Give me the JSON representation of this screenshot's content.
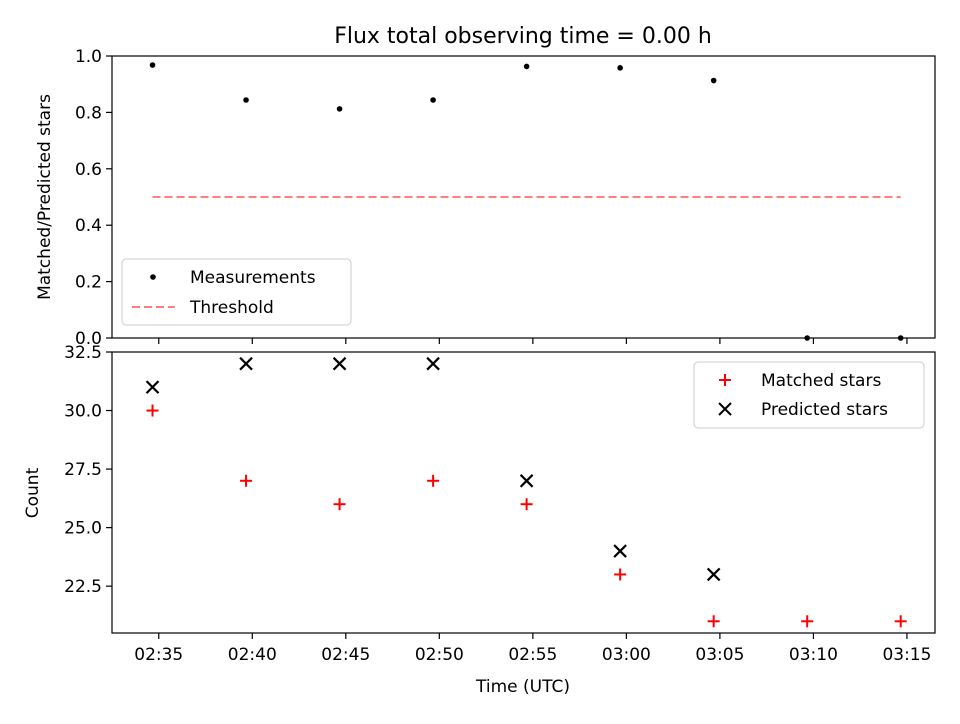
{
  "title": "Flux total observing time = 0.00 h",
  "chart_data": [
    {
      "type": "scatter",
      "ylabel": "Matched/Predicted stars",
      "ylim": [
        0,
        1.0
      ],
      "y_ticks": [
        "0.0",
        "0.2",
        "0.4",
        "0.6",
        "0.8",
        "1.0"
      ],
      "y_tick_values": [
        0,
        0.2,
        0.4,
        0.6,
        0.8,
        1.0
      ],
      "legend_placement": "lower-left",
      "series": [
        {
          "name": "Measurements",
          "marker": "dot",
          "color": "#000000",
          "x": [
            "02:34:40",
            "02:39:40",
            "02:44:40",
            "02:49:40",
            "02:54:40",
            "02:59:40",
            "03:04:40",
            "03:09:40",
            "03:14:40"
          ],
          "values": [
            0.968,
            0.844,
            0.8125,
            0.844,
            0.963,
            0.958,
            0.913,
            0.0,
            0.0
          ]
        },
        {
          "name": "Threshold",
          "style": "dashed",
          "color": "#ff7f7f",
          "x": [
            "02:34:40",
            "03:14:40"
          ],
          "values": [
            0.5,
            0.5
          ]
        }
      ]
    },
    {
      "type": "scatter",
      "xlabel": "Time (UTC)",
      "ylabel": "Count",
      "ylim": [
        20.5,
        32.5
      ],
      "y_ticks": [
        "22.5",
        "25.0",
        "27.5",
        "30.0",
        "32.5"
      ],
      "y_tick_values": [
        22.5,
        25.0,
        27.5,
        30.0,
        32.5
      ],
      "legend_placement": "upper-right",
      "series": [
        {
          "name": "Matched stars",
          "marker": "plus",
          "color": "#ff0000",
          "x": [
            "02:34:40",
            "02:39:40",
            "02:44:40",
            "02:49:40",
            "02:54:40",
            "02:59:40",
            "03:04:40",
            "03:09:40",
            "03:14:40"
          ],
          "values": [
            30,
            27,
            26,
            27,
            26,
            23,
            21,
            21,
            21
          ]
        },
        {
          "name": "Predicted stars",
          "marker": "x",
          "color": "#000000",
          "x": [
            "02:34:40",
            "02:39:40",
            "02:44:40",
            "02:49:40",
            "02:54:40",
            "02:59:40",
            "03:04:40"
          ],
          "values": [
            31,
            32,
            32,
            32,
            27,
            24,
            23
          ]
        }
      ]
    }
  ],
  "x_axis": {
    "range": [
      "02:32:30",
      "03:16:30"
    ],
    "ticks": [
      "02:35",
      "02:40",
      "02:45",
      "02:50",
      "02:55",
      "03:00",
      "03:05",
      "03:10",
      "03:15"
    ],
    "tick_times": [
      "02:35:00",
      "02:40:00",
      "02:45:00",
      "02:50:00",
      "02:55:00",
      "03:00:00",
      "03:05:00",
      "03:10:00",
      "03:15:00"
    ]
  }
}
